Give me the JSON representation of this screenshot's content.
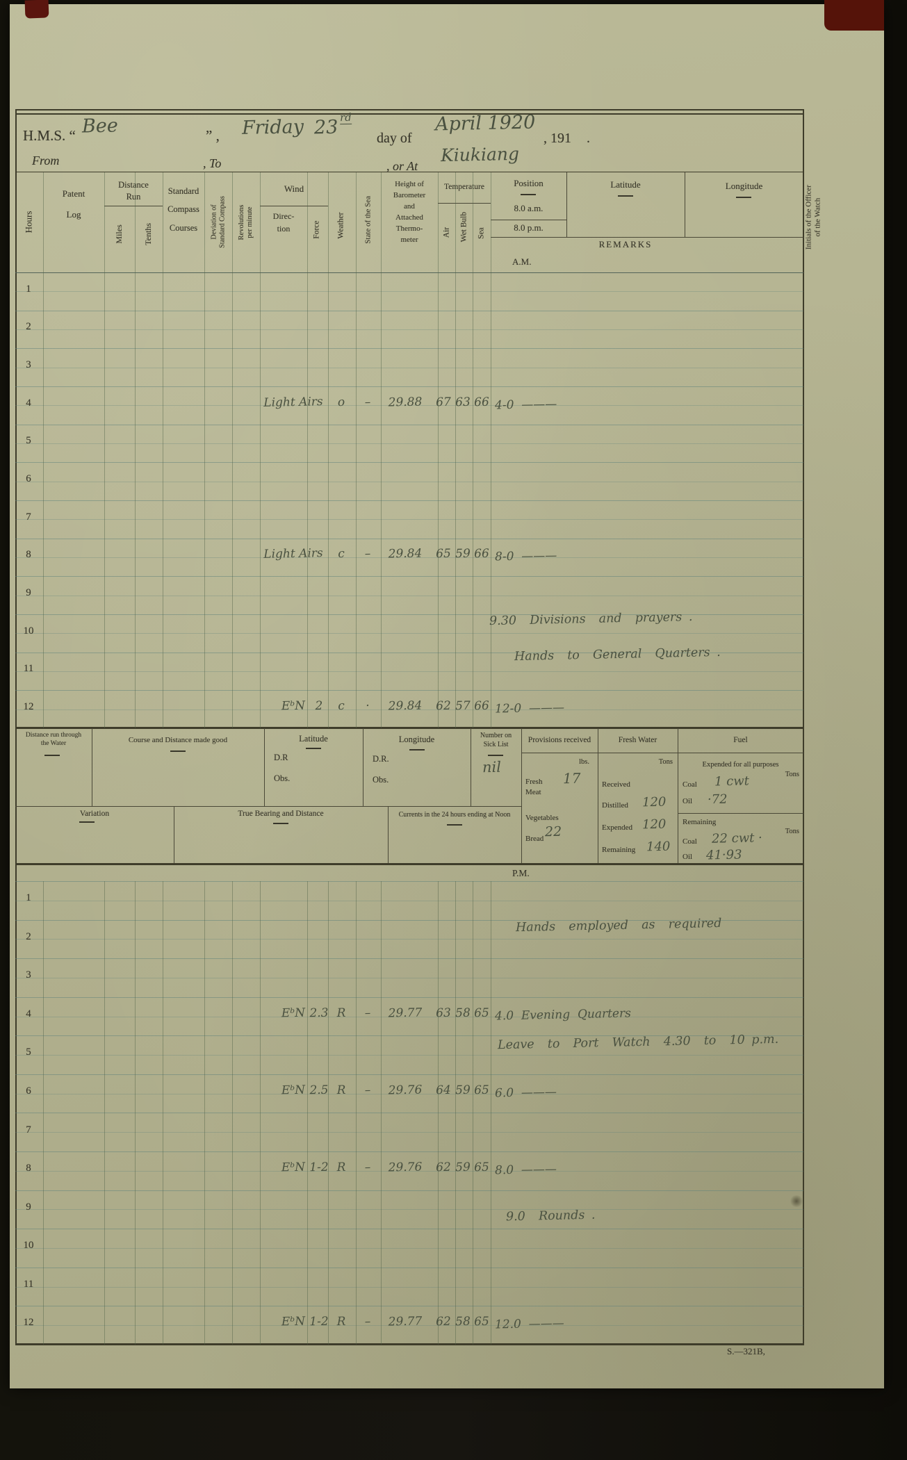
{
  "header": {
    "prefix": "H.M.S. “",
    "ship": "Bee",
    "suffix": "”   ,",
    "weekday": "Friday",
    "day": "23",
    "day_sup": "rd",
    "day_of": "day of",
    "date_script": "April 1920",
    "year": ", 191",
    "dot": ".",
    "from": "From",
    "to": ", To",
    "or_at": ", or At",
    "place": "Kiukiang"
  },
  "columns": {
    "hours": "Hours",
    "patent_log": "Patent\nLog",
    "distance_run": "Distance\nRun",
    "miles": "Miles",
    "tenths": "Tenths",
    "standard_compass": "Standard\nCompass\nCourses",
    "deviation": "Deviation of\nStandard Compass",
    "revolutions": "Revolutions\nper minute",
    "wind": "Wind",
    "direction": "Direc-\ntion",
    "force": "Force",
    "weather": "Weather",
    "sea_state": "State of the Sea",
    "barometer": "Height of\nBarometer\nand\nAttached\nThermo-\nmeter",
    "temperature": "Temperature",
    "air": "Air",
    "wet_bulb": "Wet Bulb",
    "sea": "Sea",
    "position": "Position",
    "am8": "8.0 a.m.",
    "pm8": "8.0 p.m.",
    "latitude": "Latitude",
    "longitude": "Longitude",
    "remarks": "REMARKS"
  },
  "sections": {
    "am": {
      "label": "A.M.",
      "hours": [
        "1",
        "2",
        "3",
        "4",
        "5",
        "6",
        "7",
        "8",
        "9",
        "10",
        "11",
        "12"
      ],
      "entries": [
        {
          "row": 4,
          "direction": "Light Airs",
          "force": "",
          "weather": "o",
          "sea_state": "–",
          "barometer": "29.88",
          "air": "67",
          "wet": "63",
          "sea": "66",
          "remark": "4-0  ———"
        },
        {
          "row": 8,
          "direction": "Light Airs",
          "force": "",
          "weather": "c",
          "sea_state": "–",
          "barometer": "29.84",
          "air": "65",
          "wet": "59",
          "sea": "66",
          "remark": "8-0  ———"
        },
        {
          "row": 12,
          "direction": "EᵇN",
          "force": "2",
          "weather": "c",
          "sea_state": "·",
          "barometer": "29.84",
          "air": "62",
          "wet": "57",
          "sea": "66",
          "remark": "12-0  ———"
        }
      ],
      "notes": [
        {
          "text": "9.30  Divisions  and  prayers ."
        },
        {
          "text": "Hands  to  General  Quarters ."
        }
      ]
    },
    "pm": {
      "label": "P.M.",
      "hours": [
        "1",
        "2",
        "3",
        "4",
        "5",
        "6",
        "7",
        "8",
        "9",
        "10",
        "11",
        "12"
      ],
      "entries": [
        {
          "row": 4,
          "direction": "EᵇN",
          "force": "2.3",
          "weather": "R",
          "sea_state": "–",
          "barometer": "29.77",
          "air": "63",
          "wet": "58",
          "sea": "65",
          "remark": "4.0  Evening  Quarters"
        },
        {
          "row": 6,
          "direction": "EᵇN",
          "force": "2.5",
          "weather": "R",
          "sea_state": "–",
          "barometer": "29.76",
          "air": "64",
          "wet": "59",
          "sea": "65",
          "remark": "6.0  ———"
        },
        {
          "row": 8,
          "direction": "EᵇN",
          "force": "1-2",
          "weather": "R",
          "sea_state": "–",
          "barometer": "29.76",
          "air": "62",
          "wet": "59",
          "sea": "65",
          "remark": "8.0  ———"
        },
        {
          "row": 12,
          "direction": "EᵇN",
          "force": "1-2",
          "weather": "R",
          "sea_state": "–",
          "barometer": "29.77",
          "air": "62",
          "wet": "58",
          "sea": "65",
          "remark": "12.0  ———"
        }
      ],
      "notes": [
        {
          "text": "Hands  employed  as  required"
        },
        {
          "text": "Leave  to  Port  Watch  4.30  to  10 p.m."
        },
        {
          "text": "9.0  Rounds ."
        }
      ]
    }
  },
  "noon": {
    "distance_water": "Distance run through\nthe Water",
    "course": "Course and Distance made good",
    "latitude": "Latitude",
    "dr_a": "D.R",
    "obs_a": "Obs.",
    "longitude": "Longitude",
    "dr_b": "D.R.",
    "obs_b": "Obs.",
    "sick_list": "Number on\nSick List",
    "sick_value": "nil",
    "variation": "Variation",
    "true_bearing": "True Bearing and Distance",
    "currents": "Currents in the 24 hours ending at Noon",
    "provisions": {
      "title": "Provisions received",
      "unit": "lbs.",
      "fresh_meat": "Fresh\nMeat",
      "fresh_meat_value": "17",
      "vegetables": "Vegetables",
      "bread": "Bread",
      "bread_value": "22"
    },
    "fresh_water": {
      "title": "Fresh Water",
      "unit": "Tons",
      "received": "Received",
      "distilled": "Distilled",
      "distilled_value": "120",
      "expended": "Expended",
      "expended_value": "120",
      "remaining": "Remaining",
      "remaining_value": "140"
    },
    "fuel": {
      "title": "Fuel",
      "expended_header": "Expended for all purposes",
      "unit": "Tons",
      "coal": "Coal",
      "coal_expended": "1 cwt",
      "oil": "Oil",
      "oil_expended": "·72",
      "remaining_header": "Remaining",
      "unit2": "Tons",
      "coal_remaining": "22 cwt ·",
      "oil_remaining": "41·93"
    }
  },
  "side": {
    "initials": "Initials of the Officer\nof the Watch"
  },
  "footer": {
    "form_ref": "S.—321B,"
  }
}
